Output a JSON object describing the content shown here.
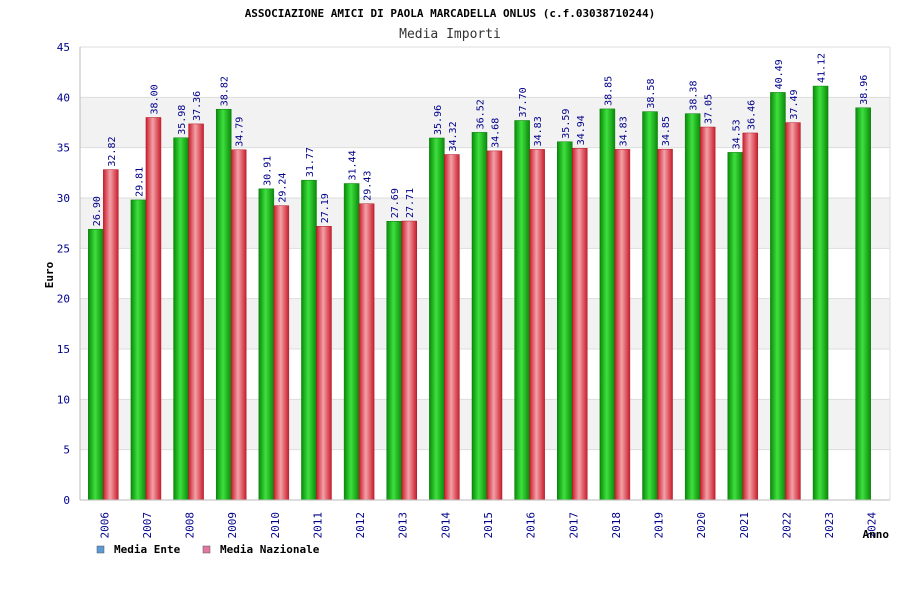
{
  "chart_data": {
    "type": "bar",
    "title": "ASSOCIAZIONE AMICI DI PAOLA MARCADELLA ONLUS (c.f.03038710244)",
    "subtitle": "Media Importi",
    "xlabel": "Anno",
    "ylabel": "Euro",
    "ylim": [
      0,
      45
    ],
    "ytick_step": 5,
    "categories": [
      "2006",
      "2007",
      "2008",
      "2009",
      "2010",
      "2011",
      "2012",
      "2013",
      "2014",
      "2015",
      "2016",
      "2017",
      "2018",
      "2019",
      "2020",
      "2021",
      "2022",
      "2023",
      "2024"
    ],
    "series": [
      {
        "name": "Media Ente",
        "legend_color": "#5b9bd5",
        "bar_color": "#1fbf1f",
        "values": [
          26.9,
          29.81,
          35.98,
          38.82,
          30.91,
          31.77,
          31.44,
          27.69,
          35.96,
          36.52,
          37.7,
          35.59,
          38.85,
          38.58,
          38.38,
          34.53,
          40.49,
          41.12,
          38.96
        ],
        "labels": [
          "26.90",
          "29.81",
          "35.98",
          "38.82",
          "30.91",
          "31.77",
          "31.44",
          "27.69",
          "35.96",
          "36.52",
          "37.70",
          "35.59",
          "38.85",
          "38.58",
          "38.38",
          "34.53",
          "40.49",
          "41.12",
          "38.96"
        ]
      },
      {
        "name": "Media Nazionale",
        "legend_color": "#e377a0",
        "bar_color": "#e8434f",
        "values": [
          32.82,
          38.0,
          37.36,
          34.79,
          29.24,
          27.19,
          29.43,
          27.71,
          34.32,
          34.68,
          34.83,
          34.94,
          34.83,
          34.85,
          37.05,
          36.46,
          37.49,
          null,
          null
        ],
        "labels": [
          "32.82",
          "38.00",
          "37.36",
          "34.79",
          "29.24",
          "27.19",
          "29.43",
          "27.71",
          "34.32",
          "34.68",
          "34.83",
          "34.94",
          "34.83",
          "34.85",
          "37.05",
          "36.46",
          "37.49",
          null,
          null
        ]
      }
    ],
    "grid": true,
    "legend_position": "bottom-left"
  }
}
